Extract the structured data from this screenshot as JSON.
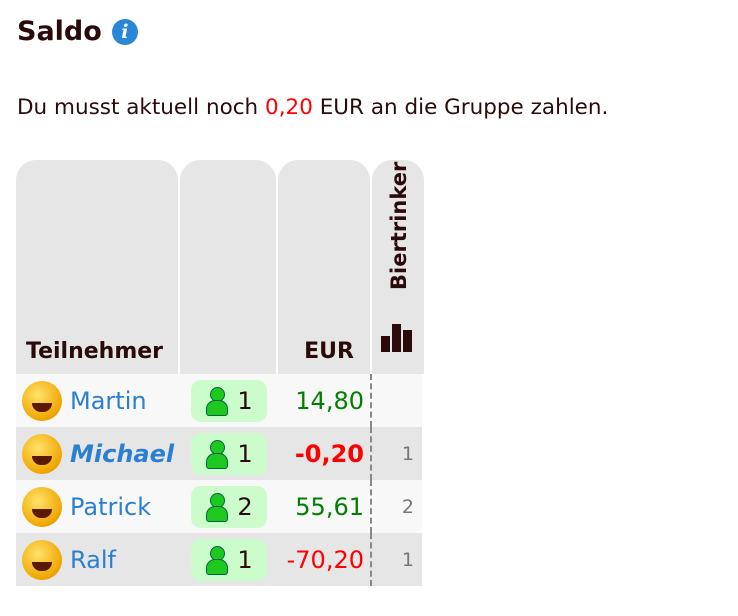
{
  "title": "Saldo",
  "info_icon": "info-icon",
  "message": {
    "before": "Du musst aktuell noch ",
    "amount": "0,20",
    "after": " EUR an die Gruppe zahlen."
  },
  "colors": {
    "positive": "#008000",
    "negative": "#ff0000",
    "link": "#2a7fd0",
    "pill": "#ccfccc"
  },
  "table": {
    "headers": {
      "participant": "Teilnehmer",
      "persons": "",
      "amount": "EUR",
      "beer": "Biertrinker"
    },
    "rows": [
      {
        "name": "Martin",
        "persons": "1",
        "amount": "14,80",
        "beer": "",
        "current_user": false
      },
      {
        "name": "Michael",
        "persons": "1",
        "amount": "-0,20",
        "beer": "1",
        "current_user": true
      },
      {
        "name": "Patrick",
        "persons": "2",
        "amount": "55,61",
        "beer": "2",
        "current_user": false
      },
      {
        "name": "Ralf",
        "persons": "1",
        "amount": "-70,20",
        "beer": "1",
        "current_user": false
      }
    ]
  }
}
